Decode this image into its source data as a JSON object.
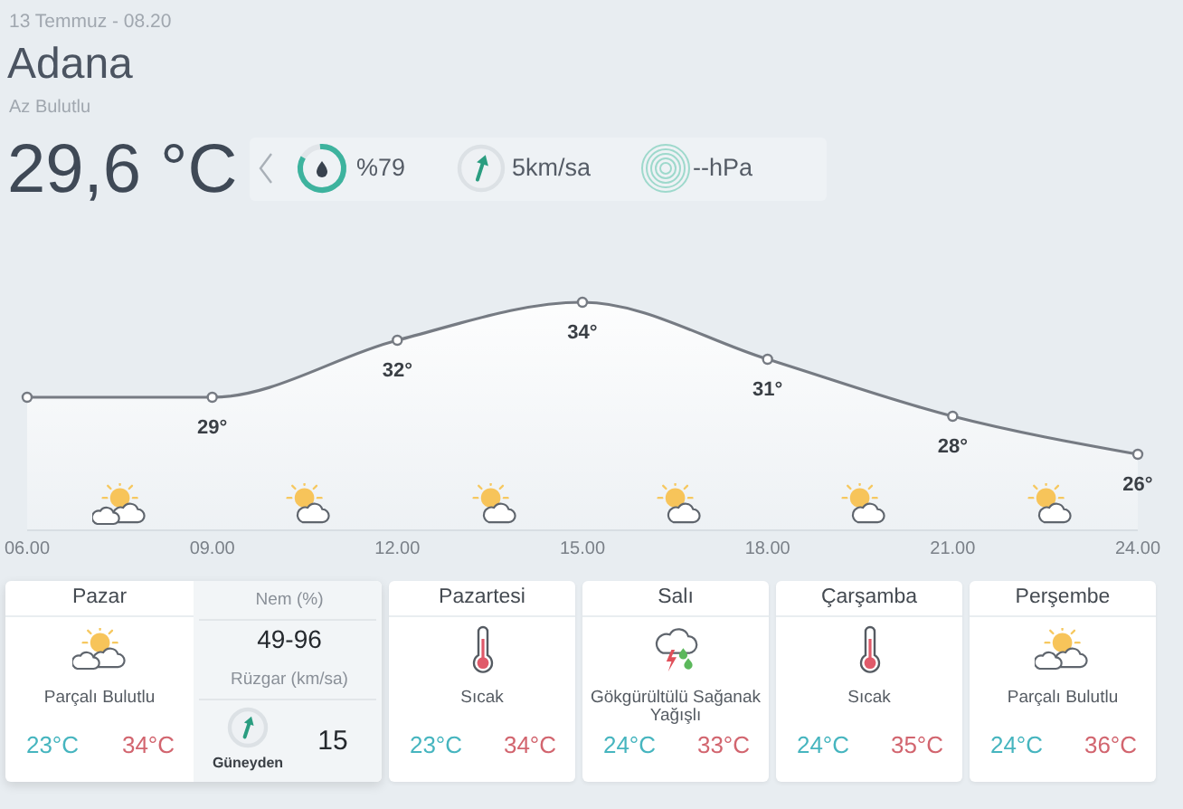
{
  "chart_data": [
    {
      "type": "other",
      "title": "Adana",
      "subtitle": "Az Bulutlu",
      "annotations": [
        "13 Temmuz - 08.20",
        "29,6 °C",
        "%79",
        "5km/sa",
        "--hPa"
      ]
    },
    {
      "type": "area",
      "categories": [
        "06.00",
        "09.00",
        "12.00",
        "15.00",
        "18.00",
        "21.00",
        "24.00"
      ],
      "series": [
        {
          "color": "#767b83",
          "values": [
            29,
            29,
            32,
            34,
            31,
            28,
            26
          ],
          "value_labels": [
            null,
            "29°",
            "32°",
            "34°",
            "31°",
            "28°",
            "26°"
          ]
        }
      ],
      "marker": "circle"
    },
    {
      "type": "other",
      "categories": [
        "Pazar",
        "Pazartesi",
        "Salı",
        "Çarşamba",
        "Perşembe"
      ],
      "annotations": [
        "Parçalı Bulutlu",
        "Sıcak",
        "Gökgürültülü Sağanak Yağışlı",
        "Sıcak",
        "Parçalı Bulutlu",
        "23°C",
        "23°C",
        "24°C",
        "24°C",
        "24°C",
        "34°C",
        "34°C",
        "33°C",
        "35°C",
        "36°C",
        "Nem (%)",
        "49-96",
        "Rüzgar (km/sa)",
        "Güneyden",
        "15"
      ]
    }
  ]
}
